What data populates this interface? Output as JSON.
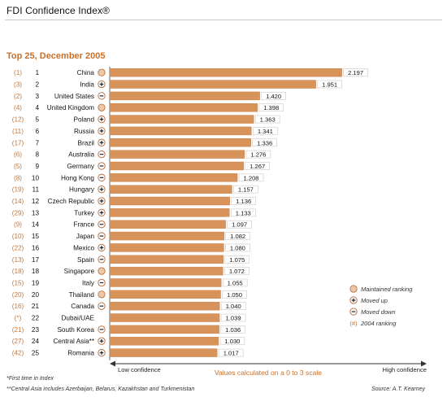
{
  "header": {
    "title": "FDI Confidence Index®",
    "subtitle": "Top 25, December 2005"
  },
  "chart_data": {
    "type": "bar",
    "orientation": "horizontal",
    "title": "Top 25, December 2005",
    "scale_caption": "Values calculated on a 0 to 3 scale",
    "xlim": [
      0,
      3
    ],
    "axis_labels": {
      "low": "Low confidence",
      "high": "High confidence"
    },
    "bar_color": "#d8935a",
    "rows": [
      {
        "prev": "(1)",
        "rank": "1",
        "country": "China",
        "value": 2.197,
        "value_label": "2.197",
        "status": "maintained"
      },
      {
        "prev": "(3)",
        "rank": "2",
        "country": "India",
        "value": 1.951,
        "value_label": "1.951",
        "status": "up"
      },
      {
        "prev": "(2)",
        "rank": "3",
        "country": "United States",
        "value": 1.42,
        "value_label": "1.420",
        "status": "down"
      },
      {
        "prev": "(4)",
        "rank": "4",
        "country": "United Kingdom",
        "value": 1.398,
        "value_label": "1.398",
        "status": "maintained"
      },
      {
        "prev": "(12)",
        "rank": "5",
        "country": "Poland",
        "value": 1.363,
        "value_label": "1.363",
        "status": "up"
      },
      {
        "prev": "(11)",
        "rank": "6",
        "country": "Russia",
        "value": 1.341,
        "value_label": "1.341",
        "status": "up"
      },
      {
        "prev": "(17)",
        "rank": "7",
        "country": "Brazil",
        "value": 1.336,
        "value_label": "1.336",
        "status": "up"
      },
      {
        "prev": "(6)",
        "rank": "8",
        "country": "Australia",
        "value": 1.276,
        "value_label": "1.276",
        "status": "down"
      },
      {
        "prev": "(5)",
        "rank": "9",
        "country": "Germany",
        "value": 1.267,
        "value_label": "1.267",
        "status": "down"
      },
      {
        "prev": "(8)",
        "rank": "10",
        "country": "Hong Kong",
        "value": 1.208,
        "value_label": "1.208",
        "status": "down"
      },
      {
        "prev": "(19)",
        "rank": "11",
        "country": "Hungary",
        "value": 1.157,
        "value_label": "1.157",
        "status": "up"
      },
      {
        "prev": "(14)",
        "rank": "12",
        "country": "Czech Republic",
        "value": 1.136,
        "value_label": "1.136",
        "status": "up"
      },
      {
        "prev": "(29)",
        "rank": "13",
        "country": "Turkey",
        "value": 1.133,
        "value_label": "1.133",
        "status": "up"
      },
      {
        "prev": "(9)",
        "rank": "14",
        "country": "France",
        "value": 1.097,
        "value_label": "1.097",
        "status": "down"
      },
      {
        "prev": "(10)",
        "rank": "15",
        "country": "Japan",
        "value": 1.082,
        "value_label": "1.082",
        "status": "down"
      },
      {
        "prev": "(22)",
        "rank": "16",
        "country": "Mexico",
        "value": 1.08,
        "value_label": "1.080",
        "status": "up"
      },
      {
        "prev": "(13)",
        "rank": "17",
        "country": "Spain",
        "value": 1.075,
        "value_label": "1.075",
        "status": "down"
      },
      {
        "prev": "(18)",
        "rank": "18",
        "country": "Singapore",
        "value": 1.072,
        "value_label": "1.072",
        "status": "maintained"
      },
      {
        "prev": "(15)",
        "rank": "19",
        "country": "Italy",
        "value": 1.055,
        "value_label": "1.055",
        "status": "down"
      },
      {
        "prev": "(20)",
        "rank": "20",
        "country": "Thailand",
        "value": 1.05,
        "value_label": "1.050",
        "status": "maintained"
      },
      {
        "prev": "(16)",
        "rank": "21",
        "country": "Canada",
        "value": 1.04,
        "value_label": "1.040",
        "status": "down"
      },
      {
        "prev": "(*)",
        "rank": "22",
        "country": "Dubai/UAE",
        "value": 1.039,
        "value_label": "1.039",
        "status": "new"
      },
      {
        "prev": "(21)",
        "rank": "23",
        "country": "South Korea",
        "value": 1.036,
        "value_label": "1.036",
        "status": "down"
      },
      {
        "prev": "(27)",
        "rank": "24",
        "country": "Central Asia**",
        "value": 1.03,
        "value_label": "1.030",
        "status": "up"
      },
      {
        "prev": "(42)",
        "rank": "25",
        "country": "Romania",
        "value": 1.017,
        "value_label": "1.017",
        "status": "up"
      }
    ],
    "legend": [
      {
        "symbol": "maintained",
        "label": "Maintained ranking"
      },
      {
        "symbol": "up",
        "label": "Moved up"
      },
      {
        "symbol": "down",
        "label": "Moved down"
      },
      {
        "symbol": "prev",
        "glyph": "(#)",
        "label": "2004 ranking"
      }
    ],
    "legend_placement": "bottom-right"
  },
  "footnotes": {
    "first_time": "*First time in Index",
    "central_asia": "**Central Asia includes Azerbaijan, Belarus, Kazakhstan and Turkmenistan",
    "source": "Source: A.T. Kearney"
  }
}
